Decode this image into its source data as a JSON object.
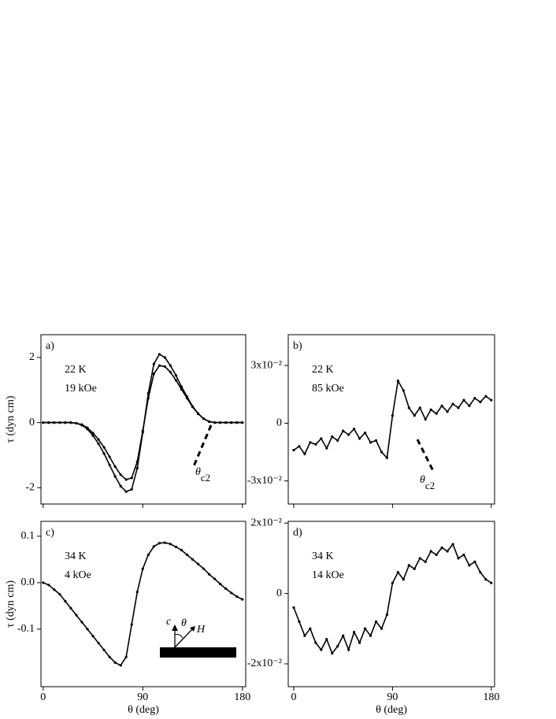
{
  "chart_data": [
    {
      "type": "line",
      "panel_label": "a)",
      "annotations": [
        "22 K",
        "19 kOe"
      ],
      "critical_angle": {
        "symbol": "θ",
        "subscript": "c2"
      },
      "y_label": "τ (dyn cm)",
      "x": [
        0,
        5,
        10,
        15,
        20,
        25,
        30,
        35,
        40,
        45,
        50,
        55,
        60,
        65,
        70,
        75,
        80,
        85,
        90,
        95,
        100,
        105,
        110,
        115,
        120,
        125,
        130,
        135,
        140,
        145,
        150,
        155,
        160,
        165,
        170,
        175,
        180
      ],
      "series": [
        {
          "color": "#000000",
          "values": [
            0,
            0,
            0,
            0,
            0,
            0,
            -0.02,
            -0.08,
            -0.2,
            -0.4,
            -0.65,
            -0.95,
            -1.3,
            -1.65,
            -1.95,
            -2.12,
            -2.05,
            -1.4,
            -0.3,
            0.9,
            1.8,
            2.1,
            2.0,
            1.75,
            1.45,
            1.1,
            0.8,
            0.5,
            0.28,
            0.12,
            0.03,
            0,
            0,
            0,
            0,
            0,
            0
          ]
        },
        {
          "color": "#000000",
          "values": [
            0,
            0,
            0,
            0,
            0,
            0,
            -0.02,
            -0.06,
            -0.16,
            -0.32,
            -0.52,
            -0.76,
            -1.05,
            -1.35,
            -1.6,
            -1.75,
            -1.7,
            -1.2,
            -0.25,
            0.75,
            1.5,
            1.75,
            1.72,
            1.55,
            1.3,
            1.02,
            0.75,
            0.48,
            0.27,
            0.12,
            0.03,
            0,
            0,
            0,
            0,
            0,
            0
          ]
        }
      ],
      "xlim": [
        -2,
        183
      ],
      "xticks": [
        0,
        90,
        180
      ],
      "xtick_labels": false,
      "ylim": [
        -2.5,
        2.7
      ],
      "yticks": [
        -2,
        0,
        2
      ]
    },
    {
      "type": "line",
      "panel_label": "b)",
      "annotations": [
        "22 K",
        "85 kOe"
      ],
      "critical_angle": {
        "symbol": "θ",
        "subscript": "c2"
      },
      "x": [
        0,
        5,
        10,
        15,
        20,
        25,
        30,
        35,
        40,
        45,
        50,
        55,
        60,
        65,
        70,
        75,
        80,
        85,
        90,
        95,
        100,
        105,
        110,
        115,
        120,
        125,
        130,
        135,
        140,
        145,
        150,
        155,
        160,
        165,
        170,
        175,
        180
      ],
      "series": [
        {
          "color": "#000000",
          "values": [
            -0.014,
            -0.012,
            -0.016,
            -0.01,
            -0.011,
            -0.008,
            -0.013,
            -0.007,
            -0.009,
            -0.004,
            -0.006,
            -0.003,
            -0.008,
            -0.005,
            -0.01,
            -0.009,
            -0.015,
            -0.018,
            0.004,
            0.022,
            0.017,
            0.008,
            0.004,
            0.008,
            0.002,
            0.007,
            0.005,
            0.009,
            0.006,
            0.01,
            0.008,
            0.012,
            0.009,
            0.013,
            0.011,
            0.014,
            0.012
          ]
        }
      ],
      "xlim": [
        -5,
        183
      ],
      "xticks": [
        0,
        90,
        180
      ],
      "xtick_labels": false,
      "ylim": [
        -0.042,
        0.046
      ],
      "yticks": [
        {
          "value": -0.03,
          "label": "-3x10⁻²"
        },
        0,
        {
          "value": 0.03,
          "label": "3x10⁻²"
        }
      ]
    },
    {
      "type": "line",
      "panel_label": "c)",
      "annotations": [
        "34 K",
        "4 kOe"
      ],
      "inset": {
        "labels": [
          "c",
          "θ",
          "H"
        ]
      },
      "y_label": "τ (dyn cm)",
      "x_label": "θ (deg)",
      "x": [
        0,
        5,
        10,
        15,
        20,
        25,
        30,
        35,
        40,
        45,
        50,
        55,
        60,
        65,
        70,
        75,
        80,
        85,
        90,
        95,
        100,
        105,
        110,
        115,
        120,
        125,
        130,
        135,
        140,
        145,
        150,
        155,
        160,
        165,
        170,
        175,
        180
      ],
      "series": [
        {
          "color": "#000000",
          "values": [
            0.0,
            -0.005,
            -0.015,
            -0.025,
            -0.04,
            -0.055,
            -0.07,
            -0.085,
            -0.1,
            -0.115,
            -0.13,
            -0.145,
            -0.16,
            -0.172,
            -0.178,
            -0.16,
            -0.09,
            -0.02,
            0.03,
            0.06,
            0.078,
            0.085,
            0.086,
            0.083,
            0.077,
            0.07,
            0.06,
            0.05,
            0.04,
            0.03,
            0.018,
            0.008,
            -0.003,
            -0.013,
            -0.022,
            -0.03,
            -0.036
          ]
        }
      ],
      "xlim": [
        -2,
        183
      ],
      "xticks": [
        0,
        90,
        180
      ],
      "xtick_labels": true,
      "ylim": [
        -0.224,
        0.132
      ],
      "yticks": [
        -0.1,
        {
          "value": 0,
          "label": "0.0"
        },
        0.1
      ]
    },
    {
      "type": "line",
      "panel_label": "d)",
      "annotations": [
        "34 K",
        "14 kOe"
      ],
      "x_label": "θ (deg)",
      "x": [
        0,
        5,
        10,
        15,
        20,
        25,
        30,
        35,
        40,
        45,
        50,
        55,
        60,
        65,
        70,
        75,
        80,
        85,
        90,
        95,
        100,
        105,
        110,
        115,
        120,
        125,
        130,
        135,
        140,
        145,
        150,
        155,
        160,
        165,
        170,
        175,
        180
      ],
      "series": [
        {
          "color": "#000000",
          "values": [
            -0.004,
            -0.008,
            -0.012,
            -0.01,
            -0.014,
            -0.016,
            -0.013,
            -0.017,
            -0.015,
            -0.012,
            -0.016,
            -0.011,
            -0.014,
            -0.01,
            -0.012,
            -0.008,
            -0.01,
            -0.006,
            0.003,
            0.006,
            0.004,
            0.008,
            0.007,
            0.01,
            0.009,
            0.012,
            0.011,
            0.013,
            0.012,
            0.014,
            0.01,
            0.011,
            0.008,
            0.009,
            0.006,
            0.004,
            0.003
          ]
        }
      ],
      "xlim": [
        -5,
        183
      ],
      "xticks": [
        0,
        90,
        180
      ],
      "xtick_labels": true,
      "ylim": [
        -0.0265,
        0.0205
      ],
      "yticks": [
        {
          "value": -0.02,
          "label": "-2x10⁻²"
        },
        0,
        {
          "value": 0.02,
          "label": "2x10⁻²"
        }
      ]
    }
  ]
}
